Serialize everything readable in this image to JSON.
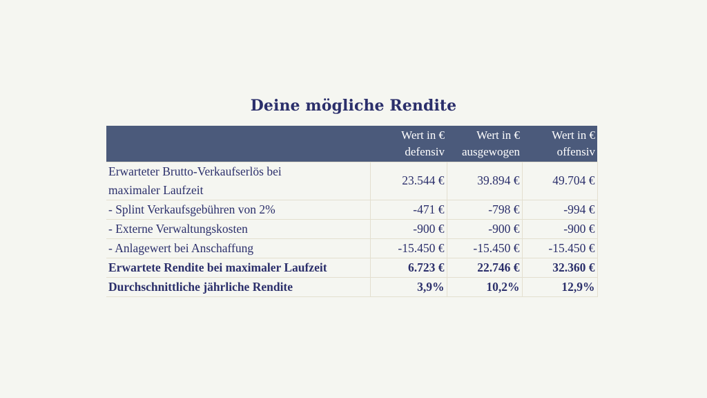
{
  "title": "Deine mögliche Rendite",
  "table": {
    "headers": [
      {
        "line1": "",
        "line2": ""
      },
      {
        "line1": "Wert in €",
        "line2": "defensiv"
      },
      {
        "line1": "Wert in €",
        "line2": "ausgewogen"
      },
      {
        "line1": "Wert in €",
        "line2": "offensiv"
      }
    ],
    "rows": [
      {
        "label_line1": "Erwarteter Brutto-Verkaufserlös bei",
        "label_line2": "maximaler Laufzeit",
        "defensiv": "23.544 €",
        "ausgewogen": "39.894 €",
        "offensiv": "49.704 €"
      },
      {
        "label": "- Splint Verkaufsgebühren von 2%",
        "defensiv": "-471 €",
        "ausgewogen": "-798 €",
        "offensiv": "-994 €"
      },
      {
        "label": "- Externe Verwaltungskosten",
        "defensiv": "-900 €",
        "ausgewogen": "-900 €",
        "offensiv": "-900 €"
      },
      {
        "label": "- Anlagewert bei Anschaffung",
        "defensiv": "-15.450 €",
        "ausgewogen": "-15.450 €",
        "offensiv": "-15.450 €"
      },
      {
        "label": "Erwartete Rendite bei maximaler Laufzeit",
        "defensiv": "6.723 €",
        "ausgewogen": "22.746 €",
        "offensiv": "32.360 €"
      },
      {
        "label": "Durchschnittliche jährliche Rendite",
        "defensiv": "3,9%",
        "ausgewogen": "10,2%",
        "offensiv": "12,9%"
      }
    ]
  },
  "colors": {
    "background": "#f5f6f1",
    "text": "#2b2f6b",
    "header_bg": "#4b5a7b",
    "header_text": "#ffffff",
    "border": "#e3dfcf"
  }
}
